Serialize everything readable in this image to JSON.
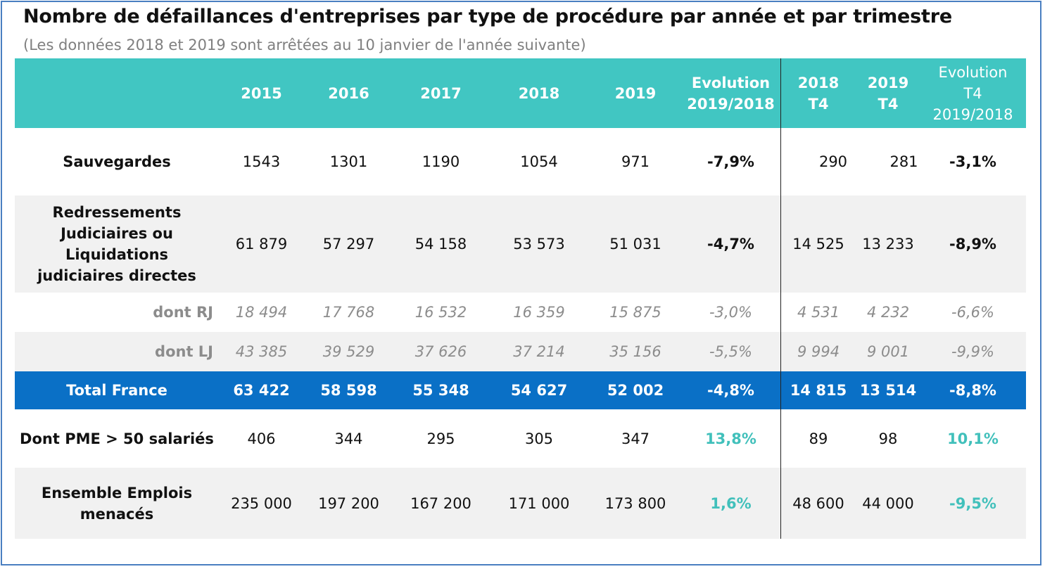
{
  "title": "Nombre de défaillances d'entreprises par type de procédure par année et par trimestre",
  "subtitle": "(Les données 2018 et 2019 sont arrêtées au 10 janvier de l'année suivante)",
  "colors": {
    "header": "#41c6c2",
    "total": "#0a70c6",
    "highlight": "#41c0bb"
  },
  "header": [
    "",
    "2015",
    "2016",
    "2017",
    "2018",
    "2019",
    "Evolution 2019/2018",
    "2018 T4",
    "2019 T4",
    "Evolution T4 2019/2018"
  ],
  "rows": [
    {
      "label": "Sauvegardes",
      "values": [
        "1543",
        "1301",
        "1190",
        "1054",
        "971",
        "-7,9%",
        "290",
        "281",
        "-3,1%"
      ]
    },
    {
      "label": "Redressements Judiciaires ou Liquidations judiciaires directes",
      "values": [
        "61 879",
        "57 297",
        "54 158",
        "53 573",
        "51 031",
        "-4,7%",
        "14 525",
        "13 233",
        "-8,9%"
      ]
    },
    {
      "label": "dont RJ",
      "values": [
        "18 494",
        "17 768",
        "16 532",
        "16 359",
        "15 875",
        "-3,0%",
        "4 531",
        "4 232",
        "-6,6%"
      ]
    },
    {
      "label": "dont LJ",
      "values": [
        "43 385",
        "39 529",
        "37 626",
        "37 214",
        "35 156",
        "-5,5%",
        "9 994",
        "9 001",
        "-9,9%"
      ]
    },
    {
      "label": "Total France",
      "values": [
        "63 422",
        "58 598",
        "55 348",
        "54 627",
        "52 002",
        "-4,8%",
        "14 815",
        "13 514",
        "-8,8%"
      ]
    },
    {
      "label": "Dont PME > 50 salariés",
      "values": [
        "406",
        "344",
        "295",
        "305",
        "347",
        "13,8%",
        "89",
        "98",
        "10,1%"
      ]
    },
    {
      "label": "Ensemble Emplois menacés",
      "values": [
        "235 000",
        "197 200",
        "167 200",
        "171 000",
        "173 800",
        "1,6%",
        "48 600",
        "44 000",
        "-9,5%"
      ]
    }
  ]
}
